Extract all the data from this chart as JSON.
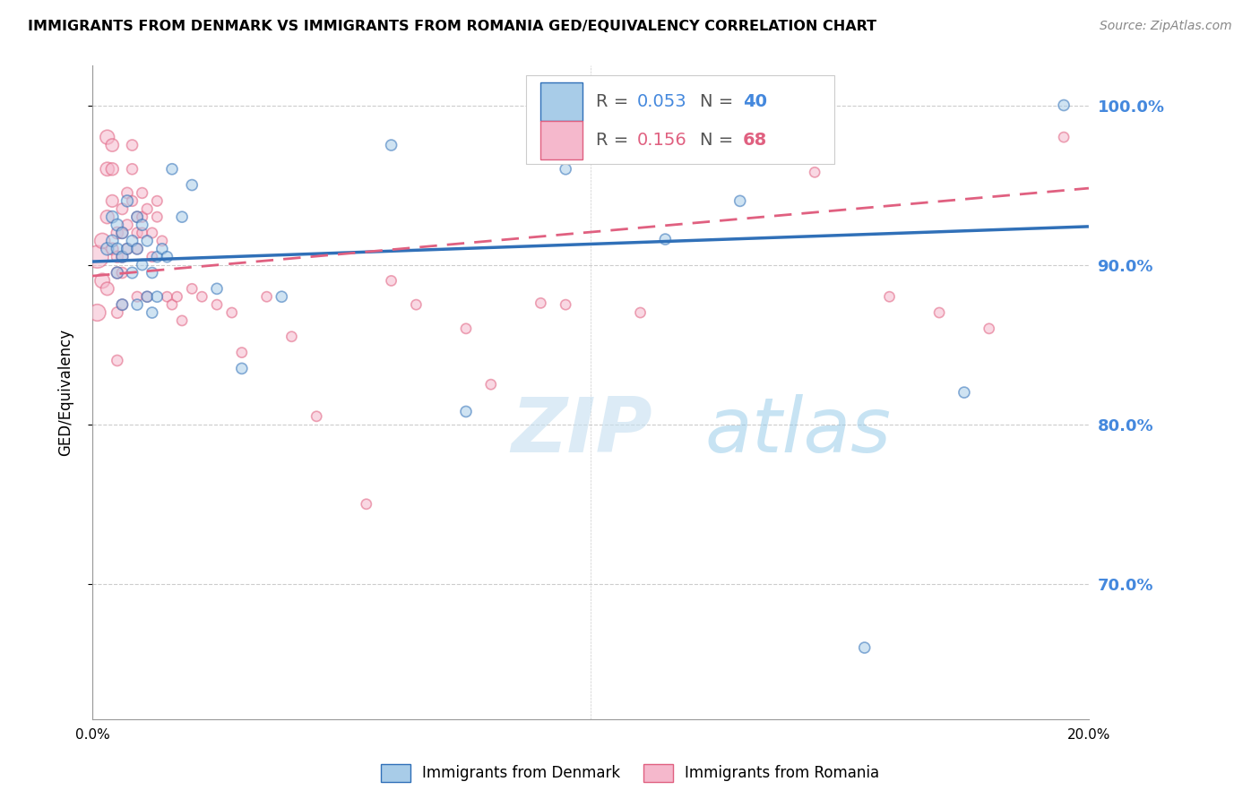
{
  "title": "IMMIGRANTS FROM DENMARK VS IMMIGRANTS FROM ROMANIA GED/EQUIVALENCY CORRELATION CHART",
  "source": "Source: ZipAtlas.com",
  "ylabel": "GED/Equivalency",
  "xlim": [
    0.0,
    0.2
  ],
  "ylim": [
    0.615,
    1.025
  ],
  "yticks": [
    0.7,
    0.8,
    0.9,
    1.0
  ],
  "ytick_labels": [
    "70.0%",
    "80.0%",
    "90.0%",
    "100.0%"
  ],
  "xticks": [
    0.0,
    0.02,
    0.04,
    0.06,
    0.08,
    0.1,
    0.12,
    0.14,
    0.16,
    0.18,
    0.2
  ],
  "xtick_labels": [
    "0.0%",
    "",
    "",
    "",
    "",
    "",
    "",
    "",
    "",
    "",
    "20.0%"
  ],
  "denmark_color": "#a8cce8",
  "romania_color": "#f5b8cc",
  "trend_denmark_color": "#3070b8",
  "trend_romania_color": "#e06080",
  "watermark_color": "#d0e8f5",
  "background_color": "#ffffff",
  "grid_color": "#cccccc",
  "right_axis_color": "#4488dd",
  "trend_den_x0": 0.0,
  "trend_den_y0": 0.902,
  "trend_den_x1": 0.2,
  "trend_den_y1": 0.924,
  "trend_rom_x0": 0.0,
  "trend_rom_y0": 0.893,
  "trend_rom_x1": 0.2,
  "trend_rom_y1": 0.948,
  "denmark_scatter": {
    "x": [
      0.003,
      0.004,
      0.004,
      0.005,
      0.005,
      0.005,
      0.006,
      0.006,
      0.006,
      0.007,
      0.007,
      0.008,
      0.008,
      0.009,
      0.009,
      0.009,
      0.01,
      0.01,
      0.011,
      0.011,
      0.012,
      0.012,
      0.013,
      0.013,
      0.014,
      0.015,
      0.016,
      0.018,
      0.02,
      0.025,
      0.03,
      0.038,
      0.06,
      0.075,
      0.095,
      0.115,
      0.13,
      0.155,
      0.175,
      0.195
    ],
    "y": [
      0.91,
      0.93,
      0.915,
      0.925,
      0.91,
      0.895,
      0.92,
      0.905,
      0.875,
      0.94,
      0.91,
      0.915,
      0.895,
      0.93,
      0.91,
      0.875,
      0.925,
      0.9,
      0.915,
      0.88,
      0.895,
      0.87,
      0.905,
      0.88,
      0.91,
      0.905,
      0.96,
      0.93,
      0.95,
      0.885,
      0.835,
      0.88,
      0.975,
      0.808,
      0.96,
      0.916,
      0.94,
      0.66,
      0.82,
      1.0
    ],
    "sizes": [
      100,
      90,
      90,
      90,
      85,
      85,
      85,
      85,
      80,
      85,
      80,
      80,
      80,
      80,
      80,
      75,
      80,
      75,
      75,
      75,
      75,
      75,
      75,
      75,
      75,
      75,
      75,
      75,
      75,
      75,
      75,
      75,
      75,
      75,
      75,
      75,
      75,
      75,
      75,
      75
    ]
  },
  "romania_scatter": {
    "x": [
      0.001,
      0.001,
      0.002,
      0.002,
      0.003,
      0.003,
      0.003,
      0.003,
      0.004,
      0.004,
      0.004,
      0.004,
      0.005,
      0.005,
      0.005,
      0.005,
      0.005,
      0.006,
      0.006,
      0.006,
      0.006,
      0.006,
      0.007,
      0.007,
      0.007,
      0.008,
      0.008,
      0.008,
      0.009,
      0.009,
      0.009,
      0.009,
      0.01,
      0.01,
      0.01,
      0.011,
      0.011,
      0.012,
      0.012,
      0.013,
      0.013,
      0.014,
      0.015,
      0.016,
      0.017,
      0.018,
      0.02,
      0.022,
      0.025,
      0.028,
      0.03,
      0.035,
      0.04,
      0.045,
      0.055,
      0.06,
      0.065,
      0.075,
      0.08,
      0.09,
      0.095,
      0.11,
      0.13,
      0.145,
      0.16,
      0.17,
      0.18,
      0.195
    ],
    "y": [
      0.905,
      0.87,
      0.915,
      0.89,
      0.98,
      0.96,
      0.93,
      0.885,
      0.975,
      0.96,
      0.94,
      0.91,
      0.92,
      0.905,
      0.895,
      0.87,
      0.84,
      0.935,
      0.92,
      0.905,
      0.895,
      0.875,
      0.945,
      0.925,
      0.91,
      0.975,
      0.96,
      0.94,
      0.93,
      0.92,
      0.91,
      0.88,
      0.945,
      0.93,
      0.92,
      0.935,
      0.88,
      0.92,
      0.905,
      0.94,
      0.93,
      0.915,
      0.88,
      0.875,
      0.88,
      0.865,
      0.885,
      0.88,
      0.875,
      0.87,
      0.845,
      0.88,
      0.855,
      0.805,
      0.75,
      0.89,
      0.875,
      0.86,
      0.825,
      0.876,
      0.875,
      0.87,
      1.0,
      0.958,
      0.88,
      0.87,
      0.86,
      0.98
    ],
    "sizes": [
      320,
      180,
      150,
      140,
      130,
      120,
      115,
      110,
      105,
      100,
      95,
      90,
      90,
      85,
      85,
      80,
      75,
      80,
      80,
      78,
      76,
      74,
      78,
      76,
      74,
      76,
      74,
      72,
      74,
      72,
      70,
      68,
      72,
      70,
      68,
      70,
      68,
      68,
      66,
      68,
      66,
      66,
      65,
      65,
      65,
      65,
      65,
      65,
      65,
      65,
      65,
      65,
      65,
      65,
      65,
      65,
      65,
      65,
      65,
      65,
      65,
      65,
      65,
      65,
      65,
      65,
      65,
      65
    ]
  }
}
